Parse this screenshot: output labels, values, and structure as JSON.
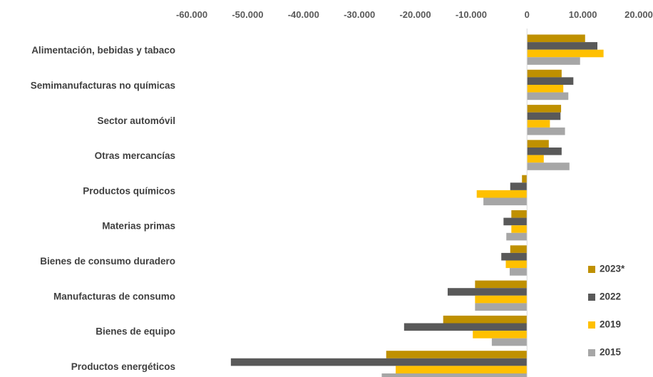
{
  "chart_data": {
    "type": "bar",
    "orientation": "horizontal",
    "title": "",
    "xlabel": "",
    "ylabel": "",
    "xlim": [
      -60000,
      20000
    ],
    "x_ticks": [
      -60000,
      -50000,
      -40000,
      -30000,
      -20000,
      -10000,
      0,
      10000,
      20000
    ],
    "x_tick_labels": [
      "-60.000",
      "-50.000",
      "-40.000",
      "-30.000",
      "-20.000",
      "-10.000",
      "0",
      "10.000",
      "20.000"
    ],
    "x_axis_position": "top",
    "grid": false,
    "legend_position": "bottom-right",
    "categories": [
      "Alimentación, bebidas y tabaco",
      "Semimanufacturas no químicas",
      "Sector automóvil",
      "Otras mercancías",
      "Productos químicos",
      "Materias primas",
      "Bienes de consumo duradero",
      "Manufacturas de consumo",
      "Bienes de equipo",
      "Productos energéticos"
    ],
    "series": [
      {
        "name": "2023*",
        "color": "#BF9000",
        "values": [
          10400,
          6200,
          6100,
          3900,
          -900,
          -2800,
          -3000,
          -9300,
          -15000,
          -25200
        ]
      },
      {
        "name": "2022",
        "color": "#595959",
        "values": [
          12600,
          8300,
          6000,
          6200,
          -3000,
          -4200,
          -4600,
          -14200,
          -22000,
          -53000
        ]
      },
      {
        "name": "2019",
        "color": "#FFC000",
        "values": [
          13700,
          6500,
          4100,
          3000,
          -9000,
          -2800,
          -3800,
          -9300,
          -9700,
          -23500
        ]
      },
      {
        "name": "2015",
        "color": "#A6A6A6",
        "values": [
          9500,
          7400,
          6800,
          7600,
          -7800,
          -3700,
          -3100,
          -9300,
          -6300,
          -26000
        ]
      }
    ]
  }
}
